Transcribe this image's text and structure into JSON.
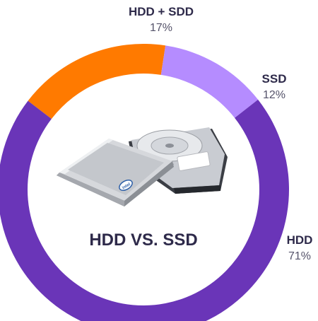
{
  "chart_data": {
    "type": "pie",
    "categories": [
      "HDD + SDD",
      "SSD",
      "HDD"
    ],
    "values": [
      17,
      12,
      71
    ],
    "value_labels": [
      "17%",
      "12%",
      "71%"
    ],
    "colors": [
      "#ff7a00",
      "#b58cff",
      "#6a35b8"
    ],
    "title": "HDD VS. SSD",
    "legend": "none"
  },
  "illustration": {
    "icon": "ssd-and-hdd-drives-icon",
    "brand_mark": "intel"
  }
}
